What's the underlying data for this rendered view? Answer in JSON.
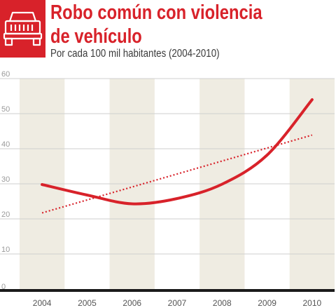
{
  "header": {
    "title_line1": "Robo común con violencia",
    "title_line2": "de vehículo",
    "subtitle": "Por cada 100 mil habitantes (2004-2010)",
    "icon": "car-front-icon"
  },
  "colors": {
    "accent": "#d8222a",
    "band": "#efece2",
    "gridline": "#cfcfcf",
    "axis": "#1a1a1a"
  },
  "chart_data": {
    "type": "line",
    "title": "Robo común con violencia de vehículo",
    "subtitle": "Por cada 100 mil habitantes (2004-2010)",
    "xlabel": "",
    "ylabel": "",
    "categories": [
      "2004",
      "2005",
      "2006",
      "2007",
      "2008",
      "2009",
      "2010"
    ],
    "ylim": [
      0,
      60
    ],
    "yticks": [
      0,
      10,
      20,
      30,
      40,
      50,
      60
    ],
    "grid": true,
    "legend": "none",
    "series": [
      {
        "style": "solid",
        "values": [
          29.8,
          26.8,
          24.3,
          25.8,
          29.9,
          38.2,
          54.0
        ]
      },
      {
        "style": "dotted-trend",
        "values": [
          21.7,
          25.4,
          29.1,
          32.8,
          36.5,
          40.2,
          43.9
        ]
      }
    ]
  }
}
